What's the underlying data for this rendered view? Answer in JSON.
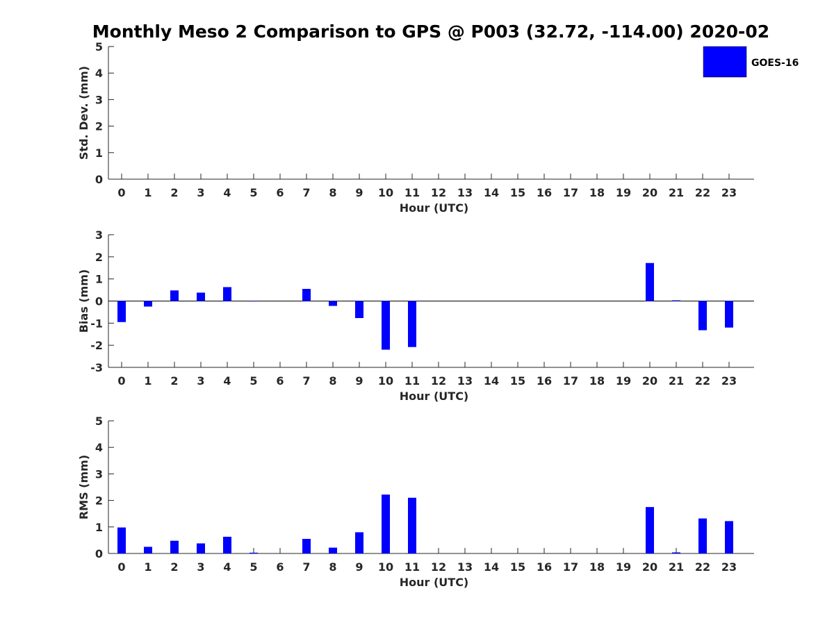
{
  "title": "Monthly Meso 2 Comparison to GPS @ P003 (32.72, -114.00) 2020-02",
  "colors": {
    "bar": "#0000ff",
    "axis": "#262626",
    "background": "#ffffff"
  },
  "chart_data": [
    {
      "type": "bar",
      "categories": [
        "0",
        "1",
        "2",
        "3",
        "4",
        "5",
        "6",
        "7",
        "8",
        "9",
        "10",
        "11",
        "12",
        "13",
        "14",
        "15",
        "16",
        "17",
        "18",
        "19",
        "20",
        "21",
        "22",
        "23"
      ],
      "series": [
        {
          "name": "GOES-16",
          "values": [
            null,
            null,
            null,
            null,
            null,
            null,
            null,
            null,
            null,
            null,
            null,
            null,
            null,
            null,
            null,
            null,
            null,
            null,
            null,
            null,
            null,
            null,
            null,
            null
          ]
        }
      ],
      "xlabel": "Hour (UTC)",
      "ylabel": "Std. Dev. (mm)",
      "ylim": [
        0,
        5
      ],
      "yticks": [
        "0",
        "1",
        "2",
        "3",
        "4",
        "5"
      ],
      "legend": {
        "position": "top-right"
      },
      "grid": false
    },
    {
      "type": "bar",
      "categories": [
        "0",
        "1",
        "2",
        "3",
        "4",
        "5",
        "6",
        "7",
        "8",
        "9",
        "10",
        "11",
        "12",
        "13",
        "14",
        "15",
        "16",
        "17",
        "18",
        "19",
        "20",
        "21",
        "22",
        "23"
      ],
      "series": [
        {
          "name": "GOES-16",
          "values": [
            -0.95,
            -0.25,
            0.48,
            0.38,
            0.63,
            0.0,
            null,
            0.55,
            -0.22,
            -0.77,
            -2.2,
            -2.08,
            null,
            null,
            null,
            null,
            null,
            null,
            null,
            null,
            1.72,
            0.03,
            -1.32,
            -1.2
          ]
        }
      ],
      "xlabel": "Hour (UTC)",
      "ylabel": "Bias (mm)",
      "ylim": [
        -3,
        3
      ],
      "yticks": [
        "-3",
        "-2",
        "-1",
        "0",
        "1",
        "2",
        "3"
      ],
      "zero_line": true,
      "grid": false
    },
    {
      "type": "bar",
      "categories": [
        "0",
        "1",
        "2",
        "3",
        "4",
        "5",
        "6",
        "7",
        "8",
        "9",
        "10",
        "11",
        "12",
        "13",
        "14",
        "15",
        "16",
        "17",
        "18",
        "19",
        "20",
        "21",
        "22",
        "23"
      ],
      "series": [
        {
          "name": "GOES-16",
          "values": [
            0.98,
            0.25,
            0.48,
            0.38,
            0.63,
            0.03,
            null,
            0.55,
            0.22,
            0.8,
            2.22,
            2.1,
            null,
            null,
            null,
            null,
            null,
            null,
            null,
            null,
            1.75,
            0.04,
            1.32,
            1.22
          ]
        }
      ],
      "xlabel": "Hour (UTC)",
      "ylabel": "RMS (mm)",
      "ylim": [
        0,
        5
      ],
      "yticks": [
        "0",
        "1",
        "2",
        "3",
        "4",
        "5"
      ],
      "grid": false
    }
  ]
}
